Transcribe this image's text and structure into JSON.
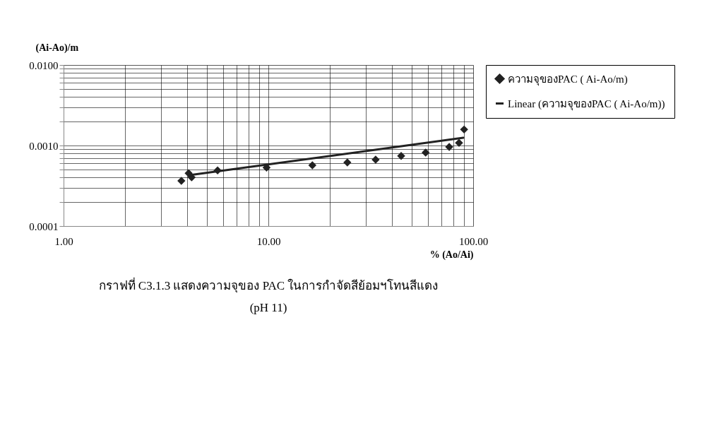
{
  "chart_data": {
    "type": "scatter",
    "title": "กราฟที่ C3.1.3  แสดงความจุของ PAC ในการกำจัดสีย้อมฯโทนสีแดง",
    "subtitle": "(pH 11)",
    "xlabel": "% (Ao/Ai)",
    "ylabel": "(Ai-Ao)/m",
    "log": "xy",
    "grid": true,
    "legend": "right",
    "xlim": [
      1,
      100
    ],
    "ylim": [
      0.0001,
      0.01
    ],
    "xticks": [
      {
        "value": 1,
        "label": "1.00"
      },
      {
        "value": 2,
        "label": null
      },
      {
        "value": 3,
        "label": null
      },
      {
        "value": 4,
        "label": null
      },
      {
        "value": 5,
        "label": null
      },
      {
        "value": 6,
        "label": null
      },
      {
        "value": 7,
        "label": null
      },
      {
        "value": 8,
        "label": null
      },
      {
        "value": 9,
        "label": null
      },
      {
        "value": 10,
        "label": "10.00"
      },
      {
        "value": 20,
        "label": null
      },
      {
        "value": 30,
        "label": null
      },
      {
        "value": 40,
        "label": null
      },
      {
        "value": 50,
        "label": null
      },
      {
        "value": 60,
        "label": null
      },
      {
        "value": 70,
        "label": null
      },
      {
        "value": 80,
        "label": null
      },
      {
        "value": 90,
        "label": null
      },
      {
        "value": 100,
        "label": "100.00"
      }
    ],
    "yticks": [
      {
        "value": 0.0001,
        "label": "0.0001"
      },
      {
        "value": 0.0002,
        "label": null
      },
      {
        "value": 0.0003,
        "label": null
      },
      {
        "value": 0.0004,
        "label": null
      },
      {
        "value": 0.0005,
        "label": null
      },
      {
        "value": 0.0006,
        "label": null
      },
      {
        "value": 0.0007,
        "label": null
      },
      {
        "value": 0.0008,
        "label": null
      },
      {
        "value": 0.0009,
        "label": null
      },
      {
        "value": 0.001,
        "label": "0.0010"
      },
      {
        "value": 0.002,
        "label": null
      },
      {
        "value": 0.003,
        "label": null
      },
      {
        "value": 0.004,
        "label": null
      },
      {
        "value": 0.005,
        "label": null
      },
      {
        "value": 0.006,
        "label": null
      },
      {
        "value": 0.007,
        "label": null
      },
      {
        "value": 0.008,
        "label": null
      },
      {
        "value": 0.009,
        "label": null
      },
      {
        "value": 0.01,
        "label": "0.0100"
      }
    ],
    "series": [
      {
        "name": "ความจุของPAC ( Ai-Ao/m)",
        "marker": "diamond",
        "color": "#222222",
        "x": [
          3.76,
          4.08,
          4.22,
          5.65,
          9.8,
          16.4,
          24.3,
          33.4,
          44.5,
          58.6,
          76.4,
          85.3,
          90.3
        ],
        "values": [
          0.000364,
          0.000453,
          0.000402,
          0.000491,
          0.000532,
          0.000568,
          0.000615,
          0.000668,
          0.000742,
          0.000817,
          0.00096,
          0.00108,
          0.00158
        ]
      },
      {
        "name": "Linear (ความจุของPAC ( Ai-Ao/m))",
        "type": "line",
        "line_style": "solid",
        "color": "#222222",
        "x": [
          4.11,
          89.5
        ],
        "values": [
          0.000428,
          0.00125
        ]
      }
    ]
  }
}
